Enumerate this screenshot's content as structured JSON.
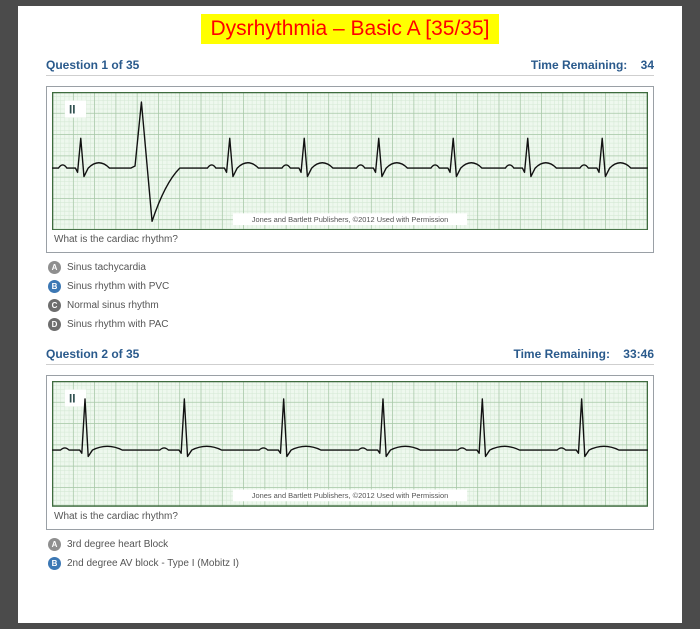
{
  "title": "Dysrhythmia – Basic A [35/35]",
  "title_bg": "#ffff00",
  "title_color": "#ff0000",
  "header_color": "#2a5a8c",
  "badge_colors": {
    "A": "#8f8f8f",
    "B": "#3c78b4",
    "C": "#6e6e6e",
    "D": "#6e6e6e"
  },
  "ecg": {
    "grid_minor": "#d4e8d4",
    "grid_major": "#a8c8a8",
    "grid_border": "#3e6b3e",
    "trace": "#111111",
    "background": "#eef8ee",
    "attribution": "Jones and Bartlett Publishers, ©2012 Used with Permission",
    "lead_label": "II"
  },
  "questions": [
    {
      "number_label": "Question 1 of 35",
      "time_label": "Time Remaining:",
      "time_value": "34",
      "prompt": "What is the cardiac rhythm?",
      "ecg_height": 130,
      "pvc_beat_index": 1,
      "beats": 8,
      "pattern": "sinus_pvc",
      "answers": [
        {
          "letter": "A",
          "text": "Sinus tachycardia"
        },
        {
          "letter": "B",
          "text": "Sinus rhythm with PVC"
        },
        {
          "letter": "C",
          "text": "Normal sinus rhythm"
        },
        {
          "letter": "D",
          "text": "Sinus rhythm with PAC"
        }
      ]
    },
    {
      "number_label": "Question 2 of 35",
      "time_label": "Time Remaining:",
      "time_value": "33:46",
      "prompt": "What is the cardiac rhythm?",
      "ecg_height": 118,
      "beats": 6,
      "pattern": "regular_tall",
      "answers": [
        {
          "letter": "A",
          "text": "3rd degree heart Block"
        },
        {
          "letter": "B",
          "text": "2nd degree AV block - Type I (Mobitz I)"
        }
      ]
    }
  ]
}
